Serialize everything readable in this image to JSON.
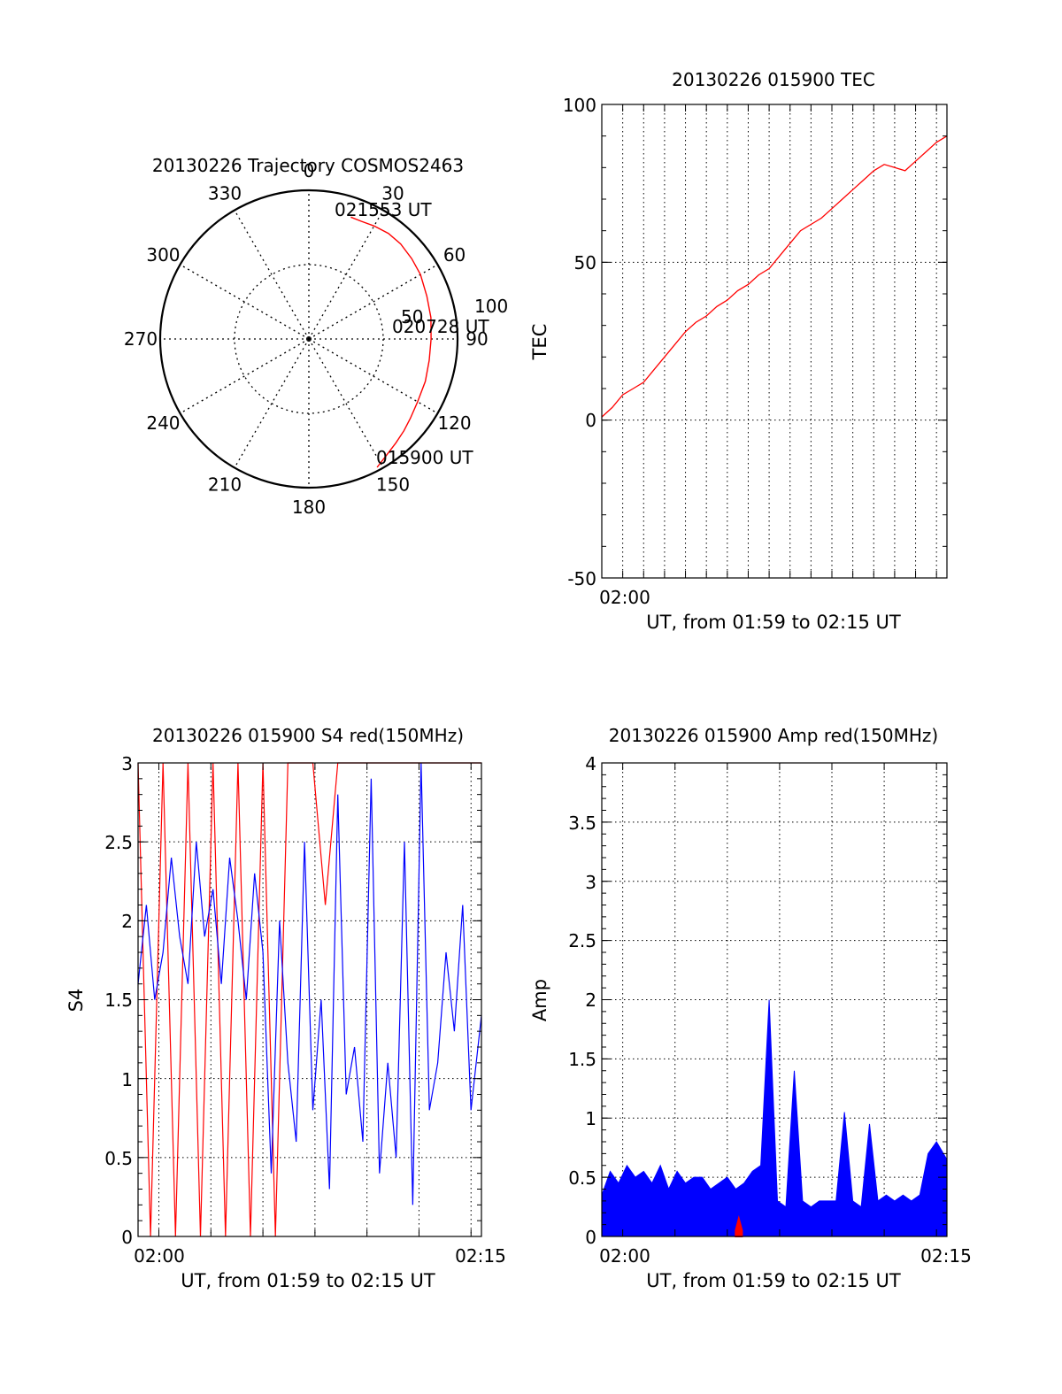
{
  "chart_data": [
    {
      "id": "polar",
      "type": "scatter",
      "title": "20130226 Trajectory COSMOS2463",
      "angle_labels": [
        "0",
        "30",
        "60",
        "90",
        "120",
        "150",
        "180",
        "210",
        "240",
        "270",
        "300",
        "330"
      ],
      "radial_labels": [
        "50",
        "100"
      ],
      "annotations": [
        "021553 UT",
        "020728 UT",
        "015900 UT"
      ],
      "trajectory": {
        "color": "#ff0000",
        "azimuth_deg": [
          19,
          24,
          30,
          37,
          44,
          52,
          60,
          70,
          80,
          90,
          100,
          110,
          120,
          128,
          134,
          140,
          147,
          152
        ],
        "zenith_angle": [
          78,
          78,
          79,
          80,
          80,
          79,
          78,
          76,
          75,
          74,
          74,
          75,
          76,
          78,
          80,
          82,
          85,
          88
        ]
      }
    },
    {
      "id": "tec",
      "type": "line",
      "title": "20130226 015900 TEC",
      "xlabel": "UT, from 01:59 to 02:15 UT",
      "ylabel": "TEC",
      "xlim": [
        1.0,
        17.5
      ],
      "ylim": [
        -50,
        100
      ],
      "yticks": [
        "100",
        "50",
        "0",
        "-50"
      ],
      "xticklabels": [
        "02:00"
      ],
      "series": [
        {
          "color": "#ff0000",
          "x": [
            1.0,
            1.5,
            2.0,
            2.5,
            3.0,
            3.5,
            4.0,
            4.5,
            5.0,
            5.5,
            6.0,
            6.5,
            7.0,
            7.5,
            8.0,
            8.5,
            9.0,
            9.5,
            10.0,
            10.5,
            11.0,
            11.5,
            12.0,
            12.5,
            13.0,
            13.5,
            14.0,
            14.5,
            15.0,
            15.5,
            16.0,
            16.5,
            17.0,
            17.5
          ],
          "y": [
            1,
            4,
            8,
            10,
            12,
            16,
            20,
            24,
            28,
            31,
            33,
            36,
            38,
            41,
            43,
            46,
            48,
            52,
            56,
            60,
            62,
            64,
            67,
            70,
            73,
            76,
            79,
            81,
            80,
            79,
            82,
            85,
            88,
            90
          ]
        }
      ]
    },
    {
      "id": "s4",
      "type": "line",
      "title": "20130226 015900 S4 red(150MHz)",
      "xlabel": "UT, from 01:59 to 02:15 UT",
      "ylabel": "S4",
      "xlim": [
        1.0,
        17.5
      ],
      "ylim": [
        0,
        3
      ],
      "yticks": [
        "3",
        "2.5",
        "2",
        "1.5",
        "1",
        "0.5",
        "0"
      ],
      "xticklabels": [
        "02:00",
        "02:15"
      ],
      "series": [
        {
          "color": "#ff0000",
          "x": [
            1.0,
            1.6,
            2.2,
            2.8,
            3.4,
            4.0,
            4.6,
            5.2,
            5.8,
            6.4,
            7.0,
            7.6,
            8.2,
            8.8,
            9.4,
            10.0,
            10.6,
            11.2,
            11.8,
            12.4,
            13.0,
            13.6,
            14.2,
            14.8,
            15.4,
            16.0,
            16.6,
            17.2,
            17.5
          ],
          "y": [
            3,
            0,
            3,
            0,
            3,
            0,
            3,
            0,
            3,
            0,
            3,
            0,
            3,
            3,
            3,
            2.1,
            3,
            3,
            3,
            3,
            3,
            3,
            3,
            3,
            3,
            3,
            3,
            3,
            3
          ]
        },
        {
          "color": "#0000ff",
          "x": [
            1.0,
            1.4,
            1.8,
            2.2,
            2.6,
            3.0,
            3.4,
            3.8,
            4.2,
            4.6,
            5.0,
            5.4,
            5.8,
            6.2,
            6.6,
            7.0,
            7.4,
            7.8,
            8.2,
            8.6,
            9.0,
            9.4,
            9.8,
            10.2,
            10.6,
            11.0,
            11.4,
            11.8,
            12.2,
            12.6,
            13.0,
            13.4,
            13.8,
            14.2,
            14.6,
            15.0,
            15.4,
            15.8,
            16.2,
            16.6,
            17.0,
            17.5
          ],
          "y": [
            1.6,
            2.1,
            1.5,
            1.8,
            2.4,
            1.9,
            1.6,
            2.5,
            1.9,
            2.2,
            1.6,
            2.4,
            2.0,
            1.5,
            2.3,
            1.8,
            0.4,
            2.0,
            1.1,
            0.6,
            2.5,
            0.8,
            1.5,
            0.3,
            2.8,
            0.9,
            1.2,
            0.6,
            2.9,
            0.4,
            1.1,
            0.5,
            2.5,
            0.2,
            3.0,
            0.8,
            1.1,
            1.8,
            1.3,
            2.1,
            0.8,
            1.4
          ]
        }
      ]
    },
    {
      "id": "amp",
      "type": "line",
      "title": "20130226 015900 Amp red(150MHz)",
      "xlabel": "UT, from 01:59 to 02:15 UT",
      "ylabel": "Amp",
      "xlim": [
        1.0,
        17.5
      ],
      "ylim": [
        0,
        4
      ],
      "yticks": [
        "4",
        "3.5",
        "3",
        "2.5",
        "2",
        "1.5",
        "1",
        "0.5",
        "0"
      ],
      "xticklabels": [
        "02:00",
        "02:15"
      ],
      "series": [
        {
          "color": "#0000ff",
          "x": [
            1.0,
            1.4,
            1.8,
            2.2,
            2.6,
            3.0,
            3.4,
            3.8,
            4.2,
            4.6,
            5.0,
            5.4,
            5.8,
            6.2,
            6.6,
            7.0,
            7.4,
            7.8,
            8.2,
            8.6,
            9.0,
            9.4,
            9.8,
            10.2,
            10.6,
            11.0,
            11.4,
            11.8,
            12.2,
            12.6,
            13.0,
            13.4,
            13.8,
            14.2,
            14.6,
            15.0,
            15.4,
            15.8,
            16.2,
            16.6,
            17.0,
            17.5
          ],
          "y": [
            0.35,
            0.55,
            0.45,
            0.6,
            0.5,
            0.55,
            0.45,
            0.6,
            0.4,
            0.55,
            0.45,
            0.5,
            0.5,
            0.4,
            0.45,
            0.5,
            0.4,
            0.45,
            0.55,
            0.6,
            2.0,
            0.3,
            0.25,
            1.4,
            0.3,
            0.25,
            0.3,
            0.3,
            0.3,
            1.05,
            0.3,
            0.25,
            0.95,
            0.3,
            0.35,
            0.3,
            0.35,
            0.3,
            0.35,
            0.7,
            0.8,
            0.65
          ]
        },
        {
          "color": "#ff0000",
          "x": [
            7.4,
            7.55,
            7.7
          ],
          "y": [
            0.05,
            0.15,
            0.05
          ]
        }
      ]
    }
  ]
}
